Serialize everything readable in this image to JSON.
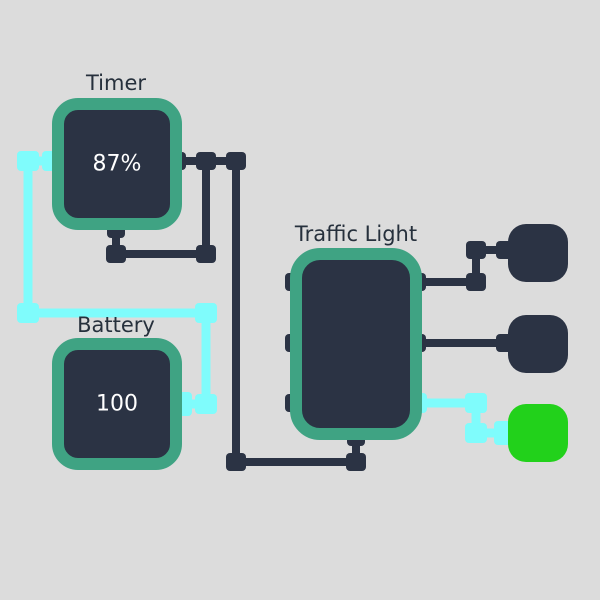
{
  "timer": {
    "label": "Timer",
    "value": "87%"
  },
  "battery": {
    "label": "Battery",
    "value": "100"
  },
  "traffic_light": {
    "label": "Traffic Light",
    "lamps": [
      {
        "name": "lamp-top",
        "state": "off",
        "color": "#2b3344"
      },
      {
        "name": "lamp-middle",
        "state": "off",
        "color": "#2b3344"
      },
      {
        "name": "lamp-bottom",
        "state": "on",
        "color": "#22d11b"
      }
    ]
  },
  "colors": {
    "background": "#dcdcdc",
    "component_fill": "#2b3344",
    "component_border": "#3fa383",
    "wire_idle": "#2b3344",
    "wire_active": "#7ffcfc",
    "lamp_on": "#22d11b"
  }
}
